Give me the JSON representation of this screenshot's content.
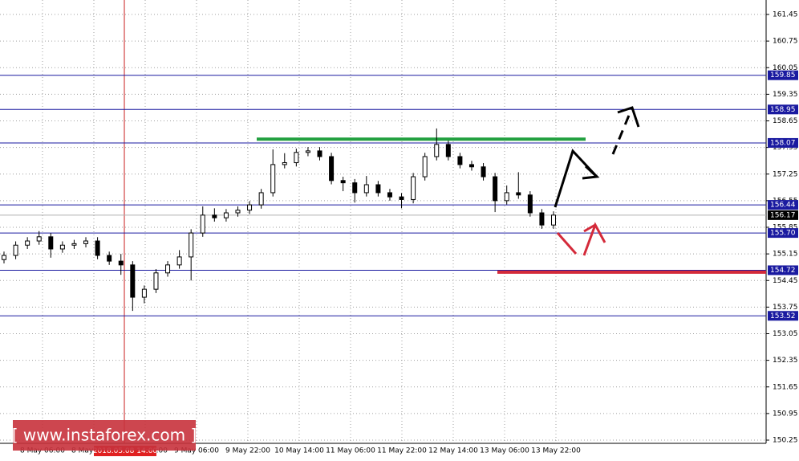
{
  "chart_data": {
    "type": "candlestick",
    "ylim": [
      150.25,
      161.45
    ],
    "yticks": [
      161.45,
      160.75,
      160.05,
      159.35,
      158.65,
      157.95,
      157.25,
      156.55,
      155.85,
      155.15,
      154.45,
      153.75,
      153.05,
      152.35,
      151.65,
      150.95,
      150.25
    ],
    "grid": true,
    "x_labels": [
      "8 May 06:00",
      "8 May 14:00",
      "8 May 22:00",
      "9 May 06:00",
      "9 May 22:00",
      "10 May 14:00",
      "11 May 06:00",
      "11 May 22:00",
      "12 May 14:00",
      "13 May 06:00",
      "13 May 22:00"
    ],
    "open": [
      155.0,
      155.11,
      155.38,
      155.49,
      155.6,
      155.28,
      155.38,
      155.42,
      155.49,
      155.11,
      154.96,
      154.86,
      154.01,
      154.22,
      154.65,
      154.86,
      155.07,
      155.7,
      156.17,
      156.1,
      156.23,
      156.3,
      156.44,
      156.76,
      157.5,
      157.55,
      157.82,
      157.86,
      157.71,
      157.08,
      157.02,
      156.76,
      156.97,
      156.76,
      156.65,
      156.58,
      157.18,
      157.71,
      158.03,
      157.71,
      157.5,
      157.44,
      157.18,
      156.55,
      156.76,
      156.7,
      156.23,
      155.91
    ],
    "high": [
      155.21,
      155.48,
      155.59,
      155.75,
      155.7,
      155.48,
      155.52,
      155.59,
      155.59,
      155.21,
      155.15,
      154.96,
      154.32,
      154.75,
      154.96,
      155.25,
      155.8,
      156.4,
      156.35,
      156.33,
      156.4,
      156.54,
      156.86,
      157.9,
      157.8,
      157.92,
      157.96,
      157.96,
      157.81,
      157.18,
      157.12,
      157.2,
      157.07,
      156.86,
      156.75,
      157.28,
      157.81,
      158.45,
      158.13,
      157.81,
      157.6,
      157.54,
      157.28,
      156.95,
      157.3,
      156.8,
      156.33,
      156.27
    ],
    "low": [
      154.9,
      155.01,
      155.28,
      155.39,
      155.05,
      155.18,
      155.28,
      155.32,
      155.01,
      154.86,
      154.6,
      153.65,
      153.85,
      154.12,
      154.55,
      154.76,
      154.45,
      155.6,
      156.0,
      156.0,
      156.13,
      156.2,
      156.34,
      156.66,
      157.4,
      157.45,
      157.72,
      157.61,
      156.98,
      156.8,
      156.5,
      156.66,
      156.66,
      156.55,
      156.35,
      156.48,
      157.08,
      157.61,
      157.61,
      157.4,
      157.34,
      157.08,
      156.25,
      156.45,
      156.6,
      156.13,
      155.81,
      155.81
    ],
    "close": [
      155.11,
      155.38,
      155.49,
      155.6,
      155.28,
      155.38,
      155.42,
      155.49,
      155.11,
      154.96,
      154.86,
      154.01,
      154.22,
      154.65,
      154.86,
      155.07,
      155.7,
      156.17,
      156.1,
      156.23,
      156.3,
      156.44,
      156.76,
      157.5,
      157.55,
      157.82,
      157.86,
      157.71,
      157.08,
      157.02,
      156.76,
      156.97,
      156.76,
      156.65,
      156.58,
      157.18,
      157.71,
      158.03,
      157.71,
      157.5,
      157.44,
      157.18,
      156.55,
      156.76,
      156.7,
      156.23,
      155.91,
      156.17
    ],
    "levels": [
      {
        "value": 159.85,
        "label": "159.85"
      },
      {
        "value": 158.95,
        "label": "158.95"
      },
      {
        "value": 158.07,
        "label": "158.07"
      },
      {
        "value": 156.44,
        "label": "156.44"
      },
      {
        "value": 155.7,
        "label": "155.70"
      },
      {
        "value": 154.72,
        "label": "154.72"
      },
      {
        "value": 153.52,
        "label": "153.52"
      }
    ],
    "current_price": 156.17,
    "resistance": 158.17,
    "resistance_color": "#22a040",
    "support": 154.67,
    "support_color": "#d42a3a",
    "cursor_label": "2018.05.08 14:00",
    "watermark": "[  www.instaforex.com ]"
  }
}
